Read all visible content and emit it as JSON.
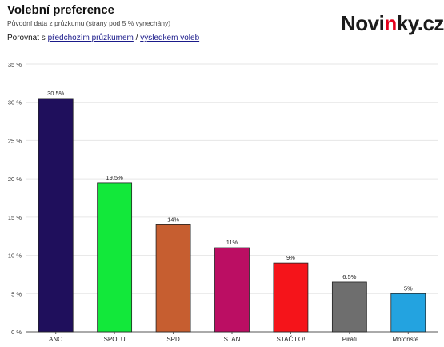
{
  "header": {
    "title": "Volební preference",
    "subtitle": "Původní data z průzkumu (strany pod 5 % vynechány)",
    "compare_prefix": "Porovnat s ",
    "compare_link_1": "předchozím průzkumem",
    "compare_separator": " / ",
    "compare_link_2": "výsledkem voleb"
  },
  "logo": {
    "part1": "Novi",
    "part2": "n",
    "part3": "ky.cz"
  },
  "chart_data": {
    "type": "bar",
    "categories": [
      "ANO",
      "SPOLU",
      "SPD",
      "STAN",
      "STAČILO!",
      "Piráti",
      "Motoristé..."
    ],
    "values": [
      30.5,
      19.5,
      14,
      11,
      9,
      6.5,
      5
    ],
    "data_labels": [
      "30.5%",
      "19.5%",
      "14%",
      "11%",
      "9%",
      "6.5%",
      "5%"
    ],
    "colors": [
      "#1f0f5c",
      "#12e83a",
      "#c65e30",
      "#bb0e63",
      "#f5141a",
      "#6e6e6e",
      "#23a3e0"
    ],
    "yticks": [
      0,
      5,
      10,
      15,
      20,
      25,
      30,
      35
    ],
    "ytick_labels": [
      "0 %",
      "5 %",
      "10 %",
      "15 %",
      "20 %",
      "25 %",
      "30 %",
      "35 %"
    ],
    "ylim": [
      0,
      35
    ],
    "grid": true,
    "title": "Volební preference",
    "xlabel": "",
    "ylabel": ""
  }
}
